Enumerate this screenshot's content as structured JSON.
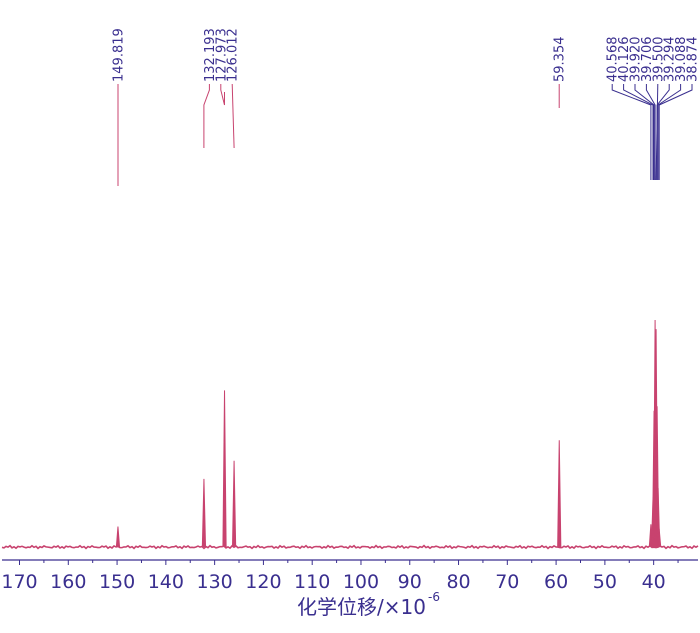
{
  "chart_data": {
    "type": "line",
    "x_axis": {
      "label": "化学位移/×10",
      "label_exponent": "-6",
      "ticks": [
        170,
        160,
        150,
        140,
        130,
        120,
        110,
        100,
        90,
        80,
        70,
        60,
        50,
        40
      ],
      "tick_labels": [
        "170",
        "160",
        "150",
        "140",
        "130",
        "120",
        "110",
        "100",
        "90",
        "80",
        "70",
        "60",
        "50",
        "40"
      ],
      "range": [
        174,
        30.5
      ],
      "reversed": true
    },
    "y_axis": {
      "shown": false,
      "range": [
        0,
        100
      ]
    },
    "grid": false,
    "series": [
      {
        "peaks": [
          {
            "x": 149.819,
            "y": 9
          },
          {
            "x": 132.193,
            "y": 30
          },
          {
            "x": 127.973,
            "y": 69
          },
          {
            "x": 126.012,
            "y": 38
          },
          {
            "x": 59.354,
            "y": 47
          },
          {
            "x": 40.568,
            "y": 10
          },
          {
            "x": 40.126,
            "y": 22
          },
          {
            "x": 39.92,
            "y": 60
          },
          {
            "x": 39.706,
            "y": 100
          },
          {
            "x": 39.5,
            "y": 96
          },
          {
            "x": 39.294,
            "y": 62
          },
          {
            "x": 39.088,
            "y": 26
          },
          {
            "x": 38.874,
            "y": 8
          }
        ]
      }
    ],
    "peak_labels": [
      {
        "x": 149.819,
        "text": "149.819",
        "group": 0
      },
      {
        "x": 132.193,
        "text": "132.193",
        "group": 1
      },
      {
        "x": 127.973,
        "text": "127.973",
        "group": 1
      },
      {
        "x": 126.012,
        "text": "126.012",
        "group": 1
      },
      {
        "x": 59.354,
        "text": "59.354",
        "group": 2
      },
      {
        "x": 40.568,
        "text": "40.568",
        "group": 3
      },
      {
        "x": 40.126,
        "text": "40.126",
        "group": 3
      },
      {
        "x": 39.92,
        "text": "39.920",
        "group": 3
      },
      {
        "x": 39.706,
        "text": "39.706",
        "group": 3
      },
      {
        "x": 39.5,
        "text": "39.500",
        "group": 3
      },
      {
        "x": 39.294,
        "text": "39.294",
        "group": 3
      },
      {
        "x": 39.088,
        "text": "39.088",
        "group": 3
      },
      {
        "x": 38.874,
        "text": "38.874",
        "group": 3
      }
    ],
    "colors": {
      "spectrum": "#c8436f",
      "text": "#3a2f8f"
    }
  }
}
